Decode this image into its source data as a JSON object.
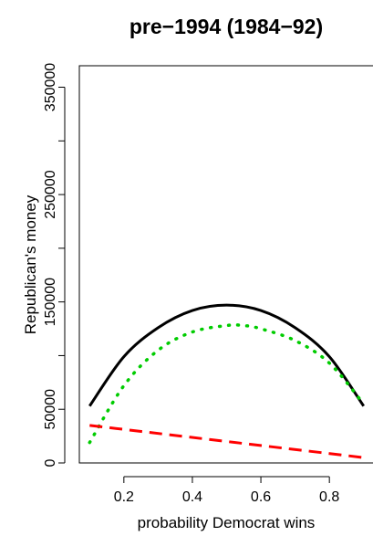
{
  "chart_data": {
    "type": "line",
    "title": "pre−1994 (1984−92)",
    "xlabel": "probability Democrat wins",
    "ylabel": "Republican's money",
    "xlim": [
      0.07,
      0.93
    ],
    "ylim": [
      0,
      370000
    ],
    "x_ticks": [
      0.2,
      0.4,
      0.6,
      0.8
    ],
    "x_tick_labels": [
      "0.2",
      "0.4",
      "0.6",
      "0.8"
    ],
    "y_ticks": [
      0,
      50000,
      150000,
      250000,
      350000
    ],
    "y_tick_labels": [
      "0",
      "50000",
      "150000",
      "250000",
      "350000"
    ],
    "y_minor_ticks": [
      100000,
      200000,
      300000
    ],
    "grid": false,
    "legend": "none",
    "series": [
      {
        "style": "solid",
        "color": "#000000",
        "x": [
          0.1,
          0.2,
          0.3,
          0.4,
          0.5,
          0.6,
          0.7,
          0.8,
          0.9
        ],
        "y": [
          53000,
          99000,
          126000,
          142000,
          147000,
          142000,
          126000,
          99000,
          53000
        ]
      },
      {
        "style": "dotted",
        "color": "#00cc00",
        "x": [
          0.1,
          0.2,
          0.3,
          0.4,
          0.5,
          0.55,
          0.6,
          0.7,
          0.8,
          0.9
        ],
        "y": [
          19000,
          72000,
          105000,
          122000,
          128000,
          128000,
          125000,
          114000,
          93000,
          55000
        ]
      },
      {
        "style": "dashed",
        "color": "#ff0000",
        "x": [
          0.1,
          0.9
        ],
        "y": [
          35000,
          5000
        ]
      }
    ]
  }
}
